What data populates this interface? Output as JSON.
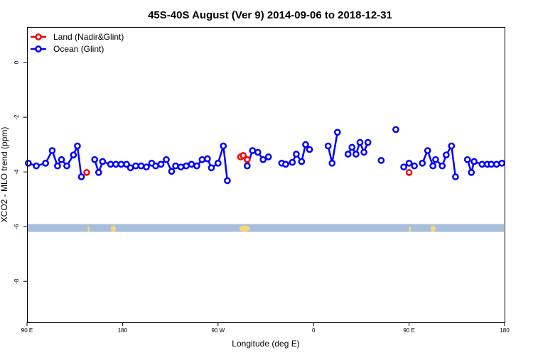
{
  "chart_data": {
    "type": "line",
    "title": "45S-40S August (Ver 9)   2014-09-06 to 2018-12-31",
    "xlabel": "Longitude (deg E)",
    "ylabel": "XCO2 - MLO trend (ppm)",
    "xlim": [
      90,
      450
    ],
    "ylim": [
      -9.5,
      1.3
    ],
    "x_ticks": [
      {
        "value": 90,
        "label": "90 E"
      },
      {
        "value": 162,
        "label": "180"
      },
      {
        "value": 234,
        "label": "90 W"
      },
      {
        "value": 306,
        "label": "0"
      },
      {
        "value": 378,
        "label": "90 E"
      },
      {
        "value": 450,
        "label": "180"
      }
    ],
    "y_ticks": [
      {
        "value": 0,
        "label": "0"
      },
      {
        "value": -2,
        "label": "-2"
      },
      {
        "value": -4,
        "label": "-4"
      },
      {
        "value": -6,
        "label": "-6"
      },
      {
        "value": -8,
        "label": "-8"
      }
    ],
    "legend_position": "top-left",
    "series": [
      {
        "name": "Land (Nadir&Glint)",
        "color": "#ff0000",
        "segments": [
          [
            [
              135,
              -4.02
            ]
          ],
          [
            [
              251,
              -3.45
            ],
            [
              253,
              -3.4
            ],
            [
              256,
              -3.55
            ]
          ],
          [
            [
              378,
              -4.02
            ]
          ]
        ]
      },
      {
        "name": "Ocean (Glint)",
        "color": "#0000ff",
        "segments": [
          [
            [
              91,
              -3.68
            ],
            [
              97,
              -3.78
            ],
            [
              104,
              -3.68
            ],
            [
              109,
              -3.22
            ],
            [
              113,
              -3.78
            ],
            [
              116,
              -3.55
            ],
            [
              120,
              -3.78
            ],
            [
              125,
              -3.38
            ],
            [
              128,
              -3.05
            ],
            [
              131,
              -4.18
            ]
          ],
          [
            [
              141,
              -3.55
            ],
            [
              144,
              -4.02
            ],
            [
              147,
              -3.62
            ],
            [
              153,
              -3.72
            ],
            [
              157,
              -3.72
            ],
            [
              161,
              -3.72
            ],
            [
              165,
              -3.72
            ],
            [
              168,
              -3.85
            ],
            [
              172,
              -3.78
            ],
            [
              176,
              -3.78
            ],
            [
              180,
              -3.82
            ],
            [
              184,
              -3.68
            ],
            [
              187,
              -3.78
            ],
            [
              191,
              -3.72
            ],
            [
              195,
              -3.55
            ],
            [
              199,
              -3.98
            ],
            [
              202,
              -3.78
            ],
            [
              206,
              -3.82
            ],
            [
              210,
              -3.78
            ],
            [
              214,
              -3.72
            ],
            [
              218,
              -3.78
            ],
            [
              222,
              -3.55
            ],
            [
              226,
              -3.52
            ],
            [
              229,
              -3.85
            ],
            [
              234,
              -3.68
            ],
            [
              238,
              -3.05
            ],
            [
              241,
              -4.32
            ]
          ],
          [
            [
              256,
              -3.78
            ],
            [
              260,
              -3.22
            ],
            [
              264,
              -3.28
            ],
            [
              268,
              -3.55
            ],
            [
              272,
              -3.45
            ]
          ],
          [
            [
              282,
              -3.68
            ],
            [
              285,
              -3.72
            ],
            [
              290,
              -3.65
            ],
            [
              293,
              -3.35
            ],
            [
              297,
              -3.62
            ],
            [
              300,
              -3.0
            ],
            [
              303,
              -3.18
            ]
          ],
          [
            [
              317,
              -3.05
            ],
            [
              320,
              -3.68
            ],
            [
              324,
              -2.55
            ]
          ],
          [
            [
              332,
              -3.35
            ],
            [
              335,
              -3.1
            ],
            [
              338,
              -3.35
            ],
            [
              341,
              -2.92
            ],
            [
              344,
              -3.28
            ],
            [
              347,
              -2.92
            ]
          ],
          [
            [
              357,
              -3.58
            ]
          ],
          [
            [
              368,
              -2.45
            ]
          ],
          [
            [
              374,
              -3.82
            ],
            [
              378,
              -3.68
            ],
            [
              382,
              -3.78
            ]
          ],
          [
            [
              388,
              -3.68
            ],
            [
              392,
              -3.22
            ],
            [
              396,
              -3.78
            ],
            [
              398,
              -3.55
            ],
            [
              403,
              -3.78
            ],
            [
              406,
              -3.38
            ],
            [
              410,
              -3.05
            ],
            [
              413,
              -4.18
            ]
          ],
          [
            [
              422,
              -3.55
            ],
            [
              425,
              -4.02
            ],
            [
              427,
              -3.62
            ],
            [
              433,
              -3.72
            ],
            [
              437,
              -3.72
            ],
            [
              440,
              -3.72
            ],
            [
              444,
              -3.72
            ],
            [
              448,
              -3.68
            ]
          ]
        ]
      }
    ],
    "land_ocean_bar": {
      "y": -6.05,
      "ocean_color": "#a8bedc",
      "land_color": "#f5d778",
      "land_extents": [
        [
          136,
          137
        ],
        [
          153,
          157
        ],
        [
          250,
          258
        ],
        [
          378,
          379
        ],
        [
          394,
          398
        ]
      ]
    }
  }
}
